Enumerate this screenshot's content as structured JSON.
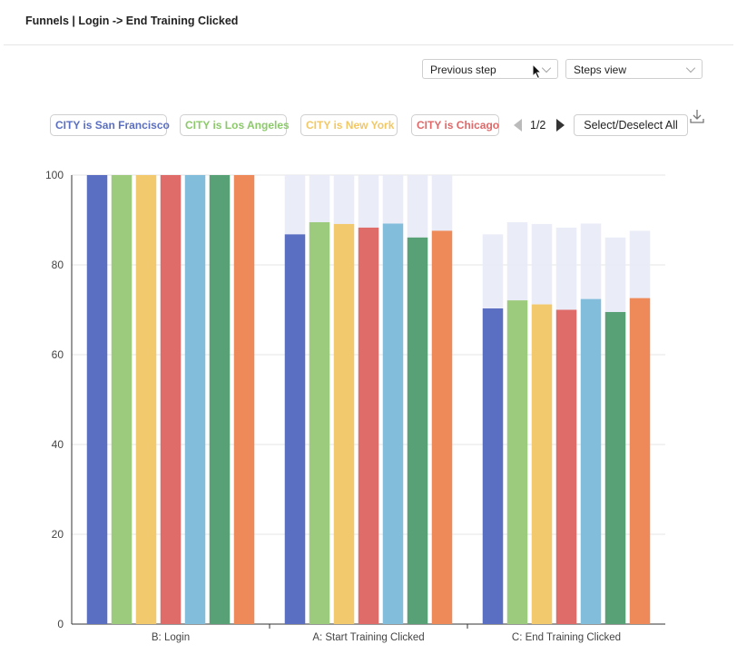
{
  "header": {
    "title": "Funnels | Login -> End Training Clicked"
  },
  "controls": {
    "conversion_select": "Previous step",
    "view_select": "Steps view"
  },
  "filters": [
    {
      "label": "CITY is San Francisco",
      "color": "#5b6fc2"
    },
    {
      "label": "CITY is Los Angeles",
      "color": "#8cc96a"
    },
    {
      "label": "CITY is New York",
      "color": "#f2c864"
    },
    {
      "label": "CITY is Chicago",
      "color": "#e06868"
    }
  ],
  "pager": {
    "text": "1/2"
  },
  "select_all_label": "Select/Deselect All",
  "chart_data": {
    "type": "bar",
    "categories": [
      "B: Login",
      "A: Start Training Clicked",
      "C: End Training Clicked"
    ],
    "ylim": [
      0,
      100
    ],
    "yticks": [
      0,
      20,
      40,
      60,
      80,
      100
    ],
    "grid": true,
    "series": [
      {
        "color": "#5b6fc2",
        "values": [
          100,
          86.8,
          70.3
        ],
        "previous": [
          100,
          100,
          86.8
        ]
      },
      {
        "color": "#9ccb7e",
        "values": [
          100,
          89.5,
          72.1
        ],
        "previous": [
          100,
          100,
          89.5
        ]
      },
      {
        "color": "#f2c96c",
        "values": [
          100,
          89.1,
          71.2
        ],
        "previous": [
          100,
          100,
          89.1
        ]
      },
      {
        "color": "#e06c6a",
        "values": [
          100,
          88.3,
          70.0
        ],
        "previous": [
          100,
          100,
          88.3
        ]
      },
      {
        "color": "#83bddc",
        "values": [
          100,
          89.2,
          72.4
        ],
        "previous": [
          100,
          100,
          89.2
        ]
      },
      {
        "color": "#58a075",
        "values": [
          100,
          86.1,
          69.5
        ],
        "previous": [
          100,
          100,
          86.1
        ]
      },
      {
        "color": "#ee8a5a",
        "values": [
          100,
          87.6,
          72.6
        ],
        "previous": [
          100,
          100,
          87.6
        ]
      }
    ]
  }
}
